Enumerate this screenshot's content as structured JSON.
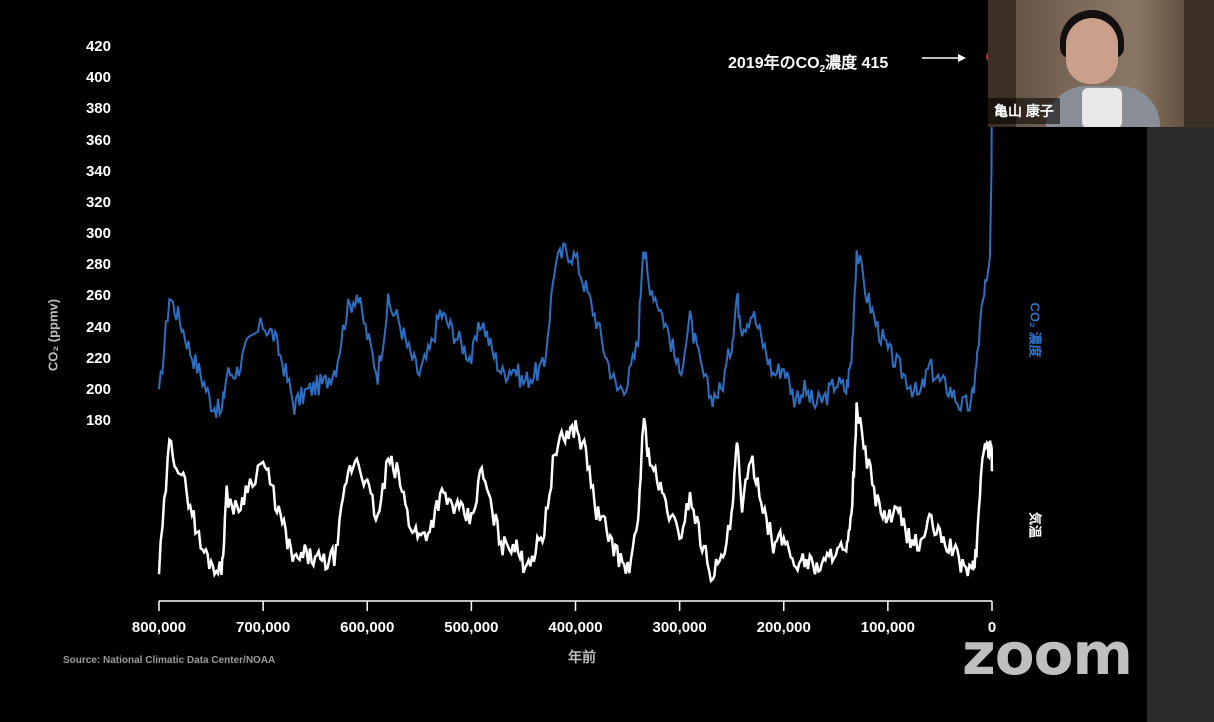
{
  "chart_data": {
    "type": "line",
    "ylabel": "CO₂ (ppmv)",
    "xlabel": "年前",
    "ylim": [
      180,
      420
    ],
    "xlim": [
      800000,
      0
    ],
    "yticks": [
      "420",
      "400",
      "380",
      "360",
      "340",
      "320",
      "300",
      "280",
      "260",
      "240",
      "220",
      "200",
      "180"
    ],
    "xticks": [
      "800,000",
      "700,000",
      "600,000",
      "500,000",
      "400,000",
      "300,000",
      "200,000",
      "100,000",
      "0"
    ],
    "source": "Source: National Climatic Data Center/NOAA",
    "annotation": {
      "text_pre": "2019年のCO",
      "text_sub": "2",
      "text_post": "濃度 415",
      "x": 0,
      "y": 415
    },
    "series": [
      {
        "name": "CO₂ 濃度",
        "color": "#2d6fc2",
        "x": [
          800000,
          790000,
          780000,
          770000,
          760000,
          750000,
          740000,
          735000,
          725000,
          715000,
          700000,
          690000,
          680000,
          670000,
          660000,
          650000,
          640000,
          630000,
          620000,
          610000,
          600000,
          590000,
          580000,
          570000,
          560000,
          550000,
          540000,
          530000,
          520000,
          510000,
          500000,
          490000,
          480000,
          470000,
          460000,
          450000,
          440000,
          430000,
          420000,
          410000,
          400000,
          390000,
          380000,
          370000,
          360000,
          350000,
          340000,
          335000,
          330000,
          320000,
          310000,
          300000,
          290000,
          280000,
          270000,
          260000,
          250000,
          245000,
          240000,
          230000,
          220000,
          210000,
          200000,
          190000,
          180000,
          170000,
          160000,
          150000,
          140000,
          135000,
          130000,
          120000,
          110000,
          100000,
          90000,
          80000,
          70000,
          60000,
          50000,
          40000,
          30000,
          20000,
          15000,
          10000,
          5000,
          2000,
          500,
          0
        ],
        "y": [
          195,
          260,
          245,
          225,
          210,
          192,
          185,
          210,
          212,
          228,
          242,
          235,
          215,
          190,
          198,
          202,
          205,
          215,
          250,
          262,
          235,
          210,
          255,
          245,
          225,
          210,
          225,
          250,
          240,
          230,
          220,
          245,
          225,
          210,
          215,
          205,
          210,
          215,
          280,
          290,
          285,
          265,
          245,
          220,
          200,
          205,
          230,
          295,
          270,
          255,
          235,
          210,
          245,
          215,
          195,
          200,
          230,
          260,
          240,
          250,
          230,
          210,
          215,
          195,
          200,
          190,
          195,
          205,
          200,
          220,
          290,
          260,
          240,
          225,
          215,
          205,
          195,
          215,
          205,
          200,
          190,
          190,
          215,
          250,
          270,
          285,
          340,
          415
        ]
      },
      {
        "name": "気温",
        "color": "#ffffff",
        "y_unit": "relative",
        "x": [
          800000,
          790000,
          780000,
          770000,
          760000,
          750000,
          740000,
          735000,
          725000,
          715000,
          700000,
          690000,
          680000,
          670000,
          660000,
          650000,
          640000,
          630000,
          620000,
          610000,
          600000,
          590000,
          580000,
          570000,
          560000,
          550000,
          540000,
          530000,
          520000,
          510000,
          500000,
          490000,
          480000,
          470000,
          460000,
          450000,
          440000,
          430000,
          420000,
          410000,
          400000,
          390000,
          380000,
          370000,
          360000,
          350000,
          340000,
          335000,
          330000,
          320000,
          310000,
          300000,
          290000,
          280000,
          270000,
          260000,
          250000,
          245000,
          240000,
          230000,
          220000,
          210000,
          200000,
          190000,
          180000,
          170000,
          160000,
          150000,
          140000,
          135000,
          130000,
          120000,
          110000,
          100000,
          90000,
          80000,
          70000,
          60000,
          50000,
          40000,
          30000,
          20000,
          15000,
          10000,
          5000,
          2000,
          500,
          0
        ],
        "y": [
          0.05,
          0.8,
          0.65,
          0.45,
          0.2,
          0.1,
          0.05,
          0.5,
          0.4,
          0.55,
          0.7,
          0.5,
          0.3,
          0.1,
          0.15,
          0.12,
          0.1,
          0.15,
          0.6,
          0.72,
          0.55,
          0.35,
          0.7,
          0.62,
          0.35,
          0.25,
          0.3,
          0.5,
          0.45,
          0.4,
          0.35,
          0.65,
          0.4,
          0.2,
          0.22,
          0.1,
          0.15,
          0.3,
          0.75,
          0.85,
          0.9,
          0.75,
          0.4,
          0.3,
          0.15,
          0.05,
          0.3,
          0.95,
          0.75,
          0.55,
          0.4,
          0.25,
          0.5,
          0.25,
          0.05,
          0.1,
          0.35,
          0.8,
          0.45,
          0.7,
          0.45,
          0.2,
          0.25,
          0.1,
          0.12,
          0.08,
          0.1,
          0.2,
          0.15,
          0.35,
          1.0,
          0.7,
          0.45,
          0.35,
          0.4,
          0.25,
          0.2,
          0.35,
          0.25,
          0.2,
          0.1,
          0.05,
          0.15,
          0.7,
          0.8,
          0.75,
          0.82,
          0.65
        ]
      }
    ]
  },
  "video": {
    "name": "亀山 康子"
  },
  "logo": {
    "text": "zoom"
  }
}
